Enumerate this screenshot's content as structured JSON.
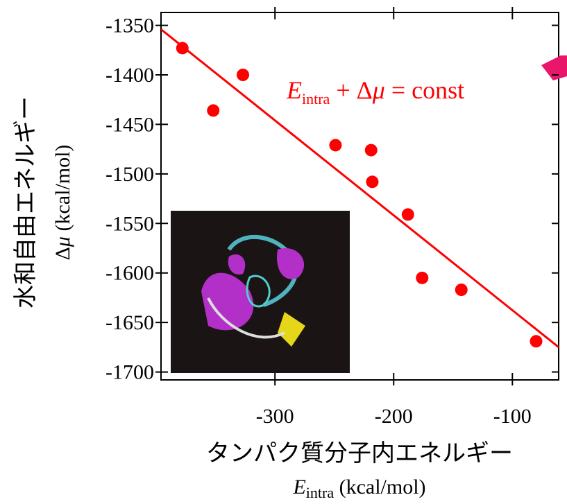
{
  "chart_data": {
    "type": "scatter",
    "annotation": [
      "E",
      "intra",
      " + Δ",
      "μ",
      " = const"
    ],
    "y_label": [
      "水和自由エネルギー",
      "Δ",
      "μ",
      " (kcal/mol)"
    ],
    "x_label": [
      "タンパク質分子内エネルギー",
      "E",
      "intra",
      " (kcal/mol)"
    ],
    "x": [
      -378,
      -352,
      -327,
      -249,
      -219,
      -218,
      -188,
      -176,
      -143,
      -80
    ],
    "y": [
      -1373,
      -1436,
      -1400,
      -1471,
      -1476,
      -1508,
      -1541,
      -1605,
      -1617,
      -1669
    ],
    "color": "#ff0000",
    "fit_line": {
      "x": [
        -396,
        -61
      ],
      "y": [
        -1354,
        -1675
      ],
      "color": "#ff0000"
    },
    "xlim": [
      -396,
      -61
    ],
    "xticks": [
      -300,
      -200,
      -100
    ],
    "ylim": [
      -1708,
      -1337
    ],
    "yticks": [
      -1350,
      -1400,
      -1450,
      -1500,
      -1550,
      -1600,
      -1650,
      -1700
    ]
  }
}
